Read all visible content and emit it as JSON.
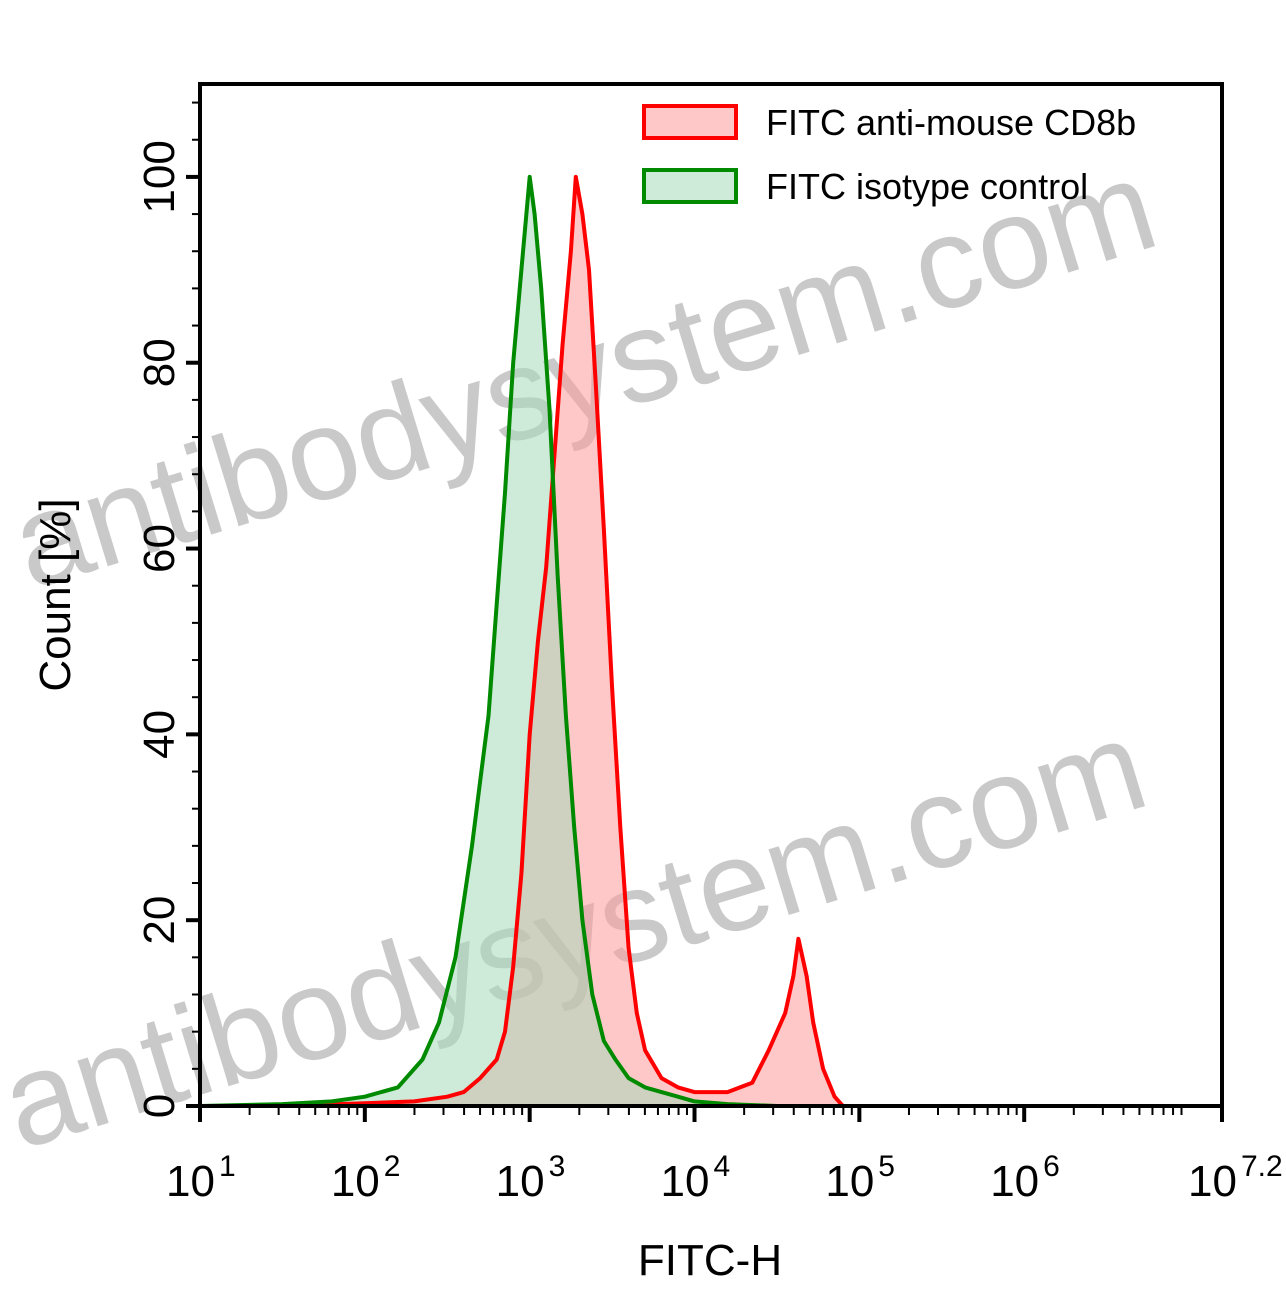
{
  "watermark": {
    "text": "antibodysystem.com"
  },
  "chart_data": {
    "type": "area",
    "x_scale": "log10",
    "xlim": [
      1.0,
      7.2
    ],
    "ylim": [
      0,
      110
    ],
    "xlabel": "FITC-H",
    "ylabel": "Count  [%]",
    "legend_position": "top-right",
    "x_ticks": [
      {
        "base": "10",
        "exp": "1",
        "value": 1
      },
      {
        "base": "10",
        "exp": "2",
        "value": 2
      },
      {
        "base": "10",
        "exp": "3",
        "value": 3
      },
      {
        "base": "10",
        "exp": "4",
        "value": 4
      },
      {
        "base": "10",
        "exp": "5",
        "value": 5
      },
      {
        "base": "10",
        "exp": "6",
        "value": 6
      },
      {
        "base": "10",
        "exp": "7.2",
        "value": 7.2
      }
    ],
    "y_ticks": [
      0,
      20,
      40,
      60,
      80,
      100
    ],
    "series": [
      {
        "name": "FITC anti-mouse CD8b",
        "stroke": "#ff0000",
        "fill": "#ff9a9a",
        "points": [
          [
            1.0,
            0
          ],
          [
            1.5,
            0
          ],
          [
            2.0,
            0.3
          ],
          [
            2.3,
            0.5
          ],
          [
            2.5,
            1
          ],
          [
            2.6,
            1.5
          ],
          [
            2.7,
            3
          ],
          [
            2.8,
            5
          ],
          [
            2.85,
            8
          ],
          [
            2.9,
            15
          ],
          [
            2.95,
            25
          ],
          [
            3.0,
            40
          ],
          [
            3.05,
            50
          ],
          [
            3.1,
            58
          ],
          [
            3.15,
            70
          ],
          [
            3.2,
            82
          ],
          [
            3.25,
            92
          ],
          [
            3.28,
            100
          ],
          [
            3.32,
            96
          ],
          [
            3.36,
            90
          ],
          [
            3.4,
            78
          ],
          [
            3.45,
            62
          ],
          [
            3.5,
            45
          ],
          [
            3.55,
            30
          ],
          [
            3.6,
            17
          ],
          [
            3.65,
            10
          ],
          [
            3.7,
            6
          ],
          [
            3.8,
            3
          ],
          [
            3.9,
            2
          ],
          [
            4.0,
            1.5
          ],
          [
            4.2,
            1.5
          ],
          [
            4.35,
            2.5
          ],
          [
            4.45,
            6
          ],
          [
            4.55,
            10
          ],
          [
            4.6,
            14
          ],
          [
            4.63,
            18
          ],
          [
            4.68,
            14
          ],
          [
            4.72,
            9
          ],
          [
            4.78,
            4
          ],
          [
            4.85,
            1
          ],
          [
            4.9,
            0
          ],
          [
            7.2,
            0
          ]
        ]
      },
      {
        "name": "FITC  isotype control",
        "stroke": "#008a00",
        "fill": "#a6d8b8",
        "points": [
          [
            1.0,
            0
          ],
          [
            1.5,
            0.2
          ],
          [
            1.8,
            0.5
          ],
          [
            2.0,
            1
          ],
          [
            2.2,
            2
          ],
          [
            2.35,
            5
          ],
          [
            2.45,
            9
          ],
          [
            2.55,
            16
          ],
          [
            2.65,
            28
          ],
          [
            2.7,
            35
          ],
          [
            2.75,
            42
          ],
          [
            2.8,
            54
          ],
          [
            2.85,
            66
          ],
          [
            2.9,
            80
          ],
          [
            2.95,
            90
          ],
          [
            3.0,
            100
          ],
          [
            3.03,
            96
          ],
          [
            3.07,
            88
          ],
          [
            3.12,
            75
          ],
          [
            3.17,
            57
          ],
          [
            3.22,
            42
          ],
          [
            3.27,
            30
          ],
          [
            3.32,
            20
          ],
          [
            3.38,
            12
          ],
          [
            3.45,
            7
          ],
          [
            3.52,
            5
          ],
          [
            3.6,
            3
          ],
          [
            3.7,
            2
          ],
          [
            3.8,
            1.5
          ],
          [
            3.9,
            1
          ],
          [
            4.0,
            0.5
          ],
          [
            4.2,
            0.2
          ],
          [
            4.5,
            0
          ],
          [
            7.2,
            0
          ]
        ]
      }
    ]
  }
}
